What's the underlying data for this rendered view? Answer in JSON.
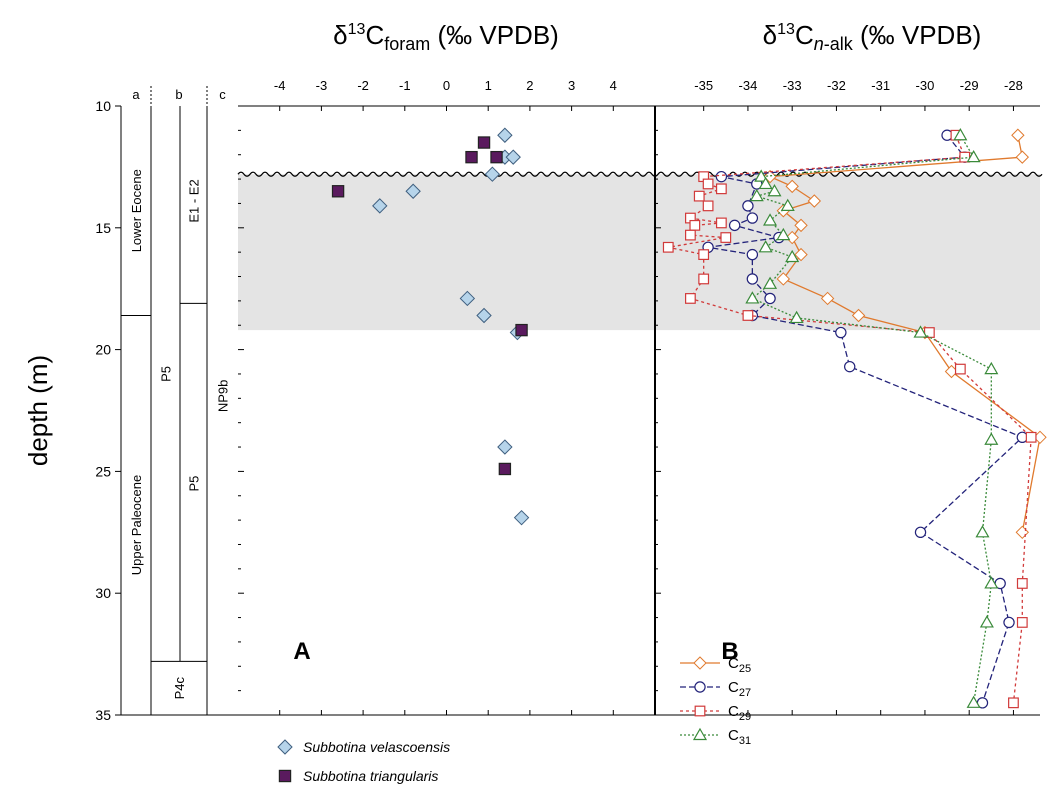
{
  "chart_data": [
    {
      "type": "stratigraphic-column",
      "columns": [
        {
          "key": "a",
          "units": [
            {
              "label": "Lower Eocene",
              "top": 10,
              "base": 18.6
            },
            {
              "label": "Upper Paleocene",
              "top": 18.6,
              "base": 35
            }
          ]
        },
        {
          "key": "b",
          "units": [
            {
              "label": "E1 - E2",
              "top": 10,
              "base": 18.1
            },
            {
              "label": "P5",
              "top": 10,
              "base": 32.8
            },
            {
              "label": "P5",
              "top": 18.1,
              "base": 32.8
            },
            {
              "label": "P4c",
              "top": 32.8,
              "base": 35
            }
          ]
        },
        {
          "key": "c",
          "units": [
            {
              "label": "NP9b",
              "top": 10,
              "base": 35
            }
          ]
        }
      ],
      "ylabel": "depth (m)",
      "yticks": [
        10,
        15,
        20,
        25,
        30,
        35
      ],
      "ylim": [
        10,
        35
      ],
      "shaded_interval": [
        12.8,
        19.2
      ],
      "unconformity_depth": 12.8
    },
    {
      "type": "scatter",
      "panel_label": "A",
      "title": "δ13Cforam (‰ VPDB)",
      "title_parts": {
        "base": "δ",
        "sup": "13",
        "mid": "C",
        "sub": "foram",
        "rest": " (‰ VPDB)"
      },
      "xlim": [
        -5,
        5
      ],
      "xticks": [
        -4,
        -3,
        -2,
        -1,
        0,
        1,
        2,
        3,
        4
      ],
      "ylim": [
        10,
        35
      ],
      "series": [
        {
          "name": "Subbotina velascoensis",
          "marker": "diamond",
          "color": "#b6d4ea",
          "points": [
            [
              1.4,
              11.2
            ],
            [
              1.4,
              12.1
            ],
            [
              1.6,
              12.1
            ],
            [
              1.1,
              12.8
            ],
            [
              -0.8,
              13.5
            ],
            [
              -1.6,
              14.1
            ],
            [
              0.5,
              17.9
            ],
            [
              0.9,
              18.6
            ],
            [
              1.7,
              19.3
            ],
            [
              1.4,
              24.0
            ],
            [
              1.8,
              26.9
            ]
          ]
        },
        {
          "name": "Subbotina triangularis",
          "marker": "square",
          "color": "#5a1a5e",
          "points": [
            [
              0.9,
              11.5
            ],
            [
              0.6,
              12.1
            ],
            [
              1.2,
              12.1
            ],
            [
              -2.6,
              13.5
            ],
            [
              1.8,
              19.2
            ],
            [
              1.4,
              24.9
            ]
          ]
        }
      ]
    },
    {
      "type": "line",
      "panel_label": "B",
      "title": "δ13Cn-alk (‰ VPDB)",
      "title_parts": {
        "base": "δ",
        "sup": "13",
        "mid": "C",
        "sub": "n",
        "sub2": "-alk",
        "rest": " (‰ VPDB)"
      },
      "xlim": [
        -36.1,
        -27.4
      ],
      "xticks": [
        -35,
        -34,
        -33,
        -32,
        -31,
        -30,
        -29,
        -28
      ],
      "ylim": [
        10,
        35
      ],
      "series": [
        {
          "name": "C25",
          "base": "C",
          "sub": "25",
          "marker": "diamond",
          "color": "#e07a2e",
          "dash": "",
          "points": [
            [
              -27.9,
              11.2
            ],
            [
              -27.8,
              12.1
            ],
            [
              -33.5,
              12.9
            ],
            [
              -33.0,
              13.3
            ],
            [
              -32.5,
              13.9
            ],
            [
              -33.2,
              14.3
            ],
            [
              -32.8,
              14.9
            ],
            [
              -33.0,
              15.4
            ],
            [
              -32.8,
              16.1
            ],
            [
              -33.2,
              17.1
            ],
            [
              -32.2,
              17.9
            ],
            [
              -31.5,
              18.6
            ],
            [
              -30.0,
              19.3
            ],
            [
              -29.4,
              20.9
            ],
            [
              -27.4,
              23.6
            ],
            [
              -27.8,
              27.5
            ]
          ]
        },
        {
          "name": "C27",
          "base": "C",
          "sub": "27",
          "marker": "circle",
          "color": "#23237a",
          "dash": "6,3",
          "points": [
            [
              -29.5,
              11.2
            ],
            [
              -29.1,
              12.1
            ],
            [
              -34.6,
              12.9
            ],
            [
              -33.8,
              13.2
            ],
            [
              -34.0,
              14.1
            ],
            [
              -33.9,
              14.6
            ],
            [
              -34.3,
              14.9
            ],
            [
              -33.3,
              15.4
            ],
            [
              -34.9,
              15.8
            ],
            [
              -33.9,
              16.1
            ],
            [
              -33.9,
              17.1
            ],
            [
              -33.5,
              17.9
            ],
            [
              -33.9,
              18.6
            ],
            [
              -31.9,
              19.3
            ],
            [
              -31.7,
              20.7
            ],
            [
              -27.8,
              23.6
            ],
            [
              -30.1,
              27.5
            ],
            [
              -28.3,
              29.6
            ],
            [
              -28.1,
              31.2
            ],
            [
              -28.7,
              34.5
            ]
          ]
        },
        {
          "name": "C29",
          "base": "C",
          "sub": "29",
          "marker": "square",
          "color": "#d13a3a",
          "dash": "3,3",
          "points": [
            [
              -29.3,
              11.2
            ],
            [
              -29.1,
              12.1
            ],
            [
              -35.0,
              12.9
            ],
            [
              -34.9,
              13.2
            ],
            [
              -34.6,
              13.4
            ],
            [
              -35.1,
              13.7
            ],
            [
              -34.9,
              14.1
            ],
            [
              -35.3,
              14.6
            ],
            [
              -34.6,
              14.8
            ],
            [
              -35.2,
              14.9
            ],
            [
              -35.3,
              15.3
            ],
            [
              -34.5,
              15.4
            ],
            [
              -35.8,
              15.8
            ],
            [
              -35.0,
              16.1
            ],
            [
              -35.0,
              17.1
            ],
            [
              -35.3,
              17.9
            ],
            [
              -34.0,
              18.6
            ],
            [
              -29.9,
              19.3
            ],
            [
              -29.2,
              20.8
            ],
            [
              -27.6,
              23.6
            ],
            [
              -27.8,
              29.6
            ],
            [
              -27.8,
              31.2
            ],
            [
              -28.0,
              34.5
            ]
          ]
        },
        {
          "name": "C31",
          "base": "C",
          "sub": "31",
          "marker": "triangle",
          "color": "#3a8a3a",
          "dash": "2,2",
          "points": [
            [
              -29.2,
              11.2
            ],
            [
              -28.9,
              12.1
            ],
            [
              -33.7,
              12.9
            ],
            [
              -33.6,
              13.2
            ],
            [
              -33.4,
              13.5
            ],
            [
              -33.8,
              13.7
            ],
            [
              -33.1,
              14.1
            ],
            [
              -33.5,
              14.7
            ],
            [
              -33.2,
              15.3
            ],
            [
              -33.6,
              15.8
            ],
            [
              -33.0,
              16.2
            ],
            [
              -33.5,
              17.3
            ],
            [
              -33.9,
              17.9
            ],
            [
              -32.9,
              18.7
            ],
            [
              -30.1,
              19.3
            ],
            [
              -28.5,
              20.8
            ],
            [
              -28.5,
              23.7
            ],
            [
              -28.7,
              27.5
            ],
            [
              -28.5,
              29.6
            ],
            [
              -28.6,
              31.2
            ],
            [
              -28.9,
              34.5
            ]
          ]
        }
      ]
    }
  ]
}
